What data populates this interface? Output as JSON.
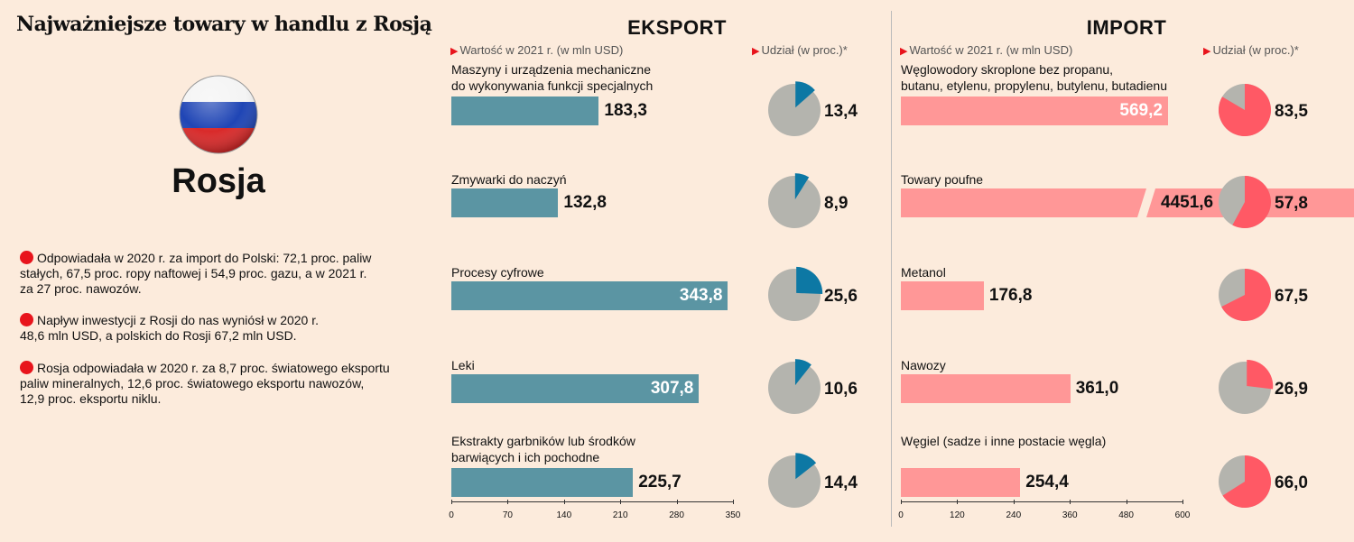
{
  "title": "Najważniejsze towary w handlu z Rosją",
  "country": "Rosja",
  "colors": {
    "export_bar": "#5b95a3",
    "export_share": "#0d78a4",
    "import_bar": "#ff9797",
    "import_share": "#ff5965",
    "pie_rest": "#b4b4ae",
    "bullet": "#e8141c"
  },
  "notes": [
    "Odpowiadała w 2020 r. za import do Polski: 72,1 proc. paliw\nstałych, 67,5 proc. ropy naftowej i 54,9 proc. gazu, a w 2021 r.\nza 27 proc. nawozów.",
    "Napływ inwestycji z Rosji do nas wyniósł w 2020 r.\n48,6 mln USD, a polskich do Rosji 67,2 mln USD.",
    "Rosja odpowiadała w 2020 r. za 8,7 proc. światowego eksportu\npaliw mineralnych, 12,6 proc. światowego eksportu nawozów,\n12,9 proc. eksportu niklu."
  ],
  "export": {
    "heading": "EKSPORT",
    "value_label": "Wartość w 2021 r. (w mln USD)",
    "share_label": "Udział (w proc.)*"
  },
  "import": {
    "heading": "IMPORT",
    "value_label": "Wartość w 2021 r. (w mln USD)",
    "share_label": "Udział (w proc.)*"
  },
  "chart_data": [
    {
      "type": "bar",
      "name": "EKSPORT",
      "x_ticks": [
        "0",
        "70",
        "140",
        "210",
        "280",
        "350"
      ],
      "xlim": [
        0,
        350
      ],
      "items": [
        {
          "category": "Maszyny i urządzenia mechaniczne\ndo wykonywania funkcji specjalnych",
          "value": 183.3,
          "value_label": "183,3",
          "share": 13.4,
          "share_label": "13,4"
        },
        {
          "category": "Zmywarki do naczyń",
          "value": 132.8,
          "value_label": "132,8",
          "share": 8.9,
          "share_label": "8,9"
        },
        {
          "category": "Procesy cyfrowe",
          "value": 343.8,
          "value_label": "343,8",
          "share": 25.6,
          "share_label": "25,6"
        },
        {
          "category": "Leki",
          "value": 307.8,
          "value_label": "307,8",
          "share": 10.6,
          "share_label": "10,6"
        },
        {
          "category": "Ekstrakty garbników lub środków\nbarwiących i ich pochodne",
          "value": 225.7,
          "value_label": "225,7",
          "share": 14.4,
          "share_label": "14,4"
        }
      ]
    },
    {
      "type": "bar",
      "name": "IMPORT",
      "x_ticks": [
        "0",
        "120",
        "240",
        "360",
        "480",
        "600"
      ],
      "xlim": [
        0,
        600
      ],
      "items": [
        {
          "category": "Węglowodory skroplone bez propanu,\nbutanu, etylenu, propylenu, butylenu, butadienu",
          "value": 569.2,
          "value_label": "569,2",
          "share": 83.5,
          "share_label": "83,5"
        },
        {
          "category": "Towary poufne",
          "value": 4451.6,
          "value_label": "4451,6",
          "share": 57.8,
          "share_label": "57,8",
          "broken_axis": true
        },
        {
          "category": "Metanol",
          "value": 176.8,
          "value_label": "176,8",
          "share": 67.5,
          "share_label": "67,5"
        },
        {
          "category": "Nawozy",
          "value": 361.0,
          "value_label": "361,0",
          "share": 26.9,
          "share_label": "26,9"
        },
        {
          "category": "Węgiel (sadze i inne postacie węgla)",
          "value": 254.4,
          "value_label": "254,4",
          "share": 66.0,
          "share_label": "66,0"
        }
      ]
    }
  ]
}
